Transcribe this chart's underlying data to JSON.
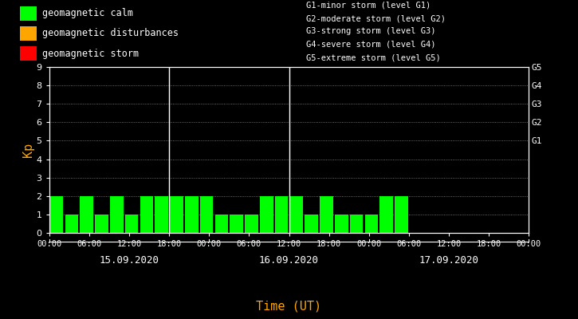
{
  "title": "",
  "xlabel": "Time (UT)",
  "ylabel": "Kp",
  "background_color": "#000000",
  "plot_bg_color": "#000000",
  "bar_color_calm": "#00ff00",
  "bar_color_disturbance": "#ffa500",
  "bar_color_storm": "#ff0000",
  "text_color": "#ffffff",
  "xlabel_color": "#ffa500",
  "ylabel_color": "#ffa500",
  "grid_color": "#ffffff",
  "divider_color": "#ffffff",
  "ylim": [
    0,
    9
  ],
  "yticks": [
    0,
    1,
    2,
    3,
    4,
    5,
    6,
    7,
    8,
    9
  ],
  "days": [
    "15.09.2020",
    "16.09.2020",
    "17.09.2020"
  ],
  "kp_values": [
    2,
    1,
    2,
    1,
    2,
    1,
    2,
    2,
    2,
    2,
    2,
    1,
    1,
    1,
    2,
    2,
    2,
    1,
    2,
    1,
    1,
    1,
    2,
    2
  ],
  "right_labels": [
    "G5",
    "G4",
    "G3",
    "G2",
    "G1"
  ],
  "right_label_yticks": [
    9,
    8,
    7,
    6,
    5
  ],
  "legend_items": [
    {
      "label": "geomagnetic calm",
      "color": "#00ff00"
    },
    {
      "label": "geomagnetic disturbances",
      "color": "#ffa500"
    },
    {
      "label": "geomagnetic storm",
      "color": "#ff0000"
    }
  ],
  "storm_legend": [
    "G1-minor storm (level G1)",
    "G2-moderate storm (level G2)",
    "G3-strong storm (level G3)",
    "G4-severe storm (level G4)",
    "G5-extreme storm (level G5)"
  ],
  "xtick_labels": [
    "00:00",
    "06:00",
    "12:00",
    "18:00",
    "00:00",
    "06:00",
    "12:00",
    "18:00",
    "00:00",
    "06:00",
    "12:00",
    "18:00",
    "00:00"
  ],
  "calm_threshold": 3,
  "disturbance_threshold": 5
}
